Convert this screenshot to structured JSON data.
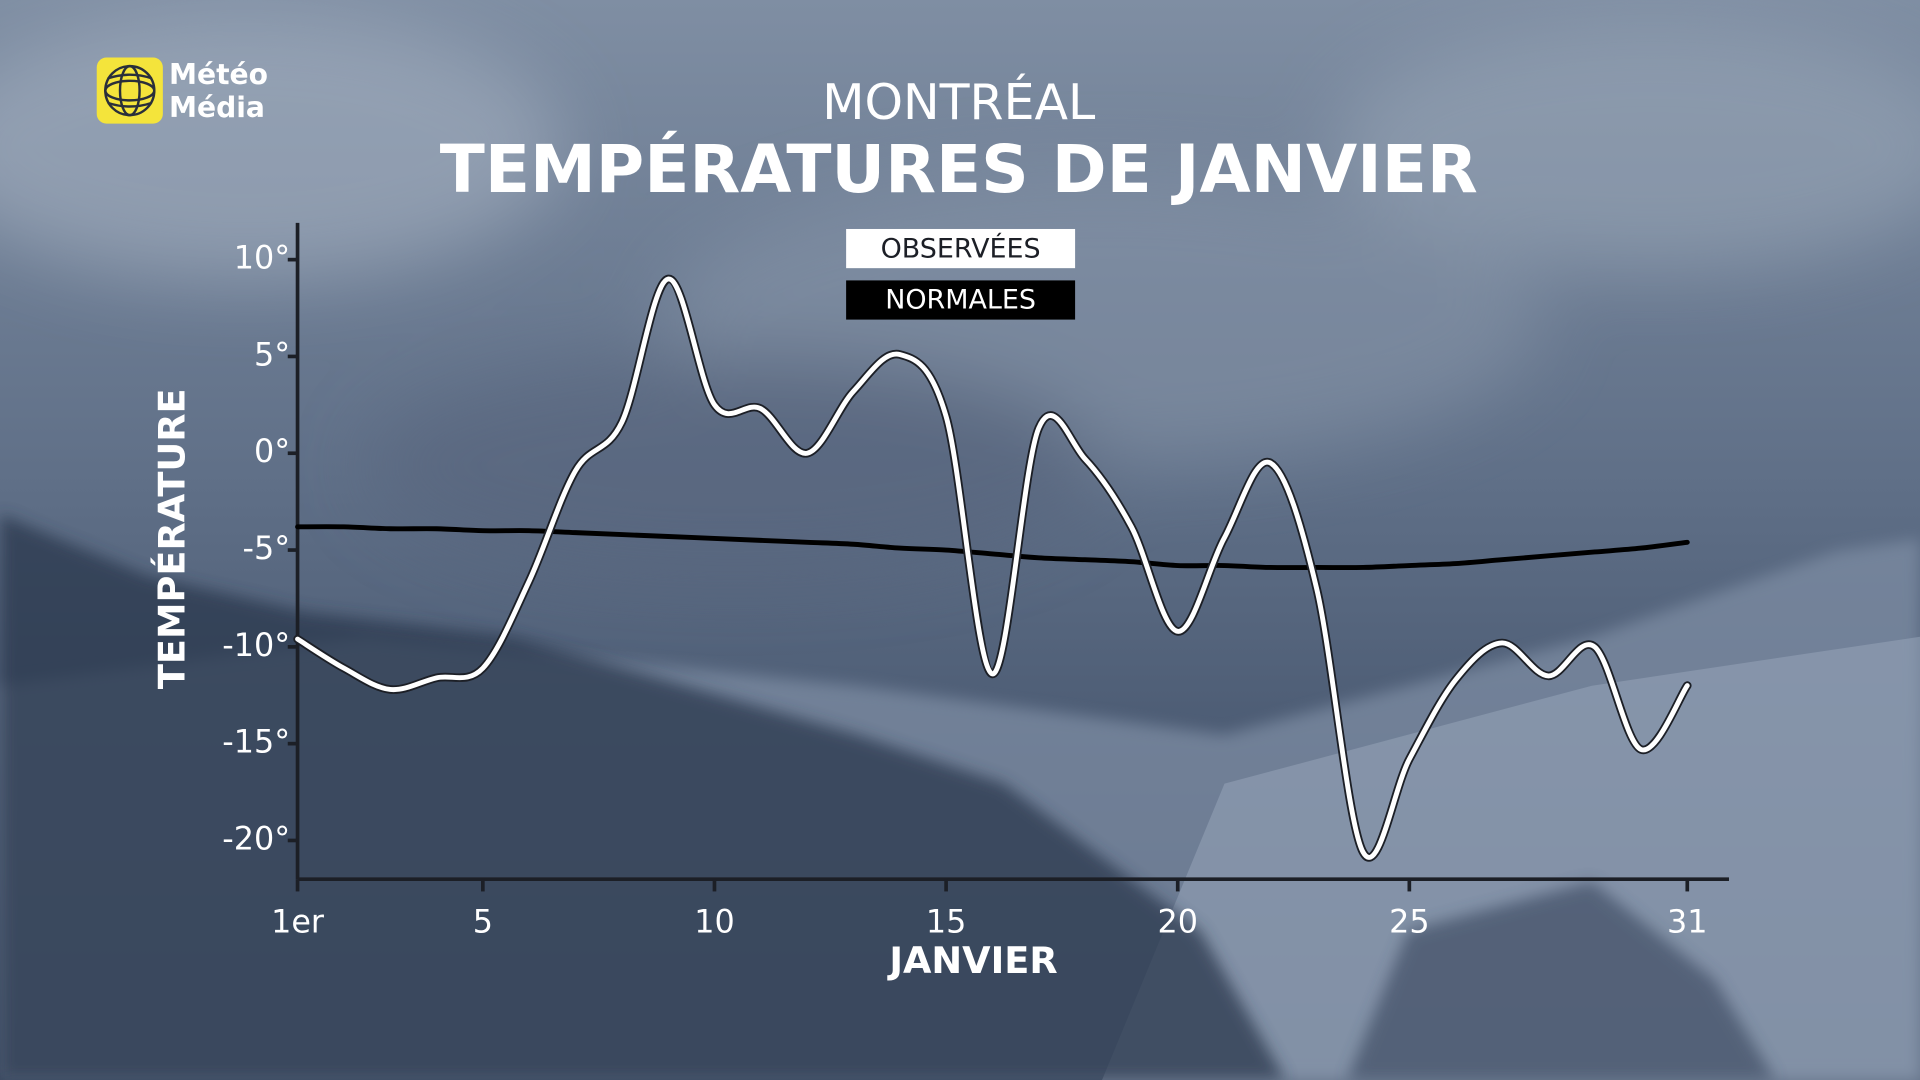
{
  "logo": {
    "line1": "Météo",
    "line2": "Média"
  },
  "chart_data": {
    "type": "line",
    "subtitle": "MONTRÉAL",
    "title": "TEMPÉRATURES DE JANVIER",
    "x_label": "JANVIER",
    "y_label": "TEMPÉRATURE",
    "x": [
      1,
      2,
      3,
      4,
      5,
      6,
      7,
      8,
      9,
      10,
      11,
      12,
      13,
      14,
      15,
      16,
      17,
      18,
      19,
      20,
      21,
      22,
      23,
      24,
      25,
      26,
      27,
      28,
      29,
      30,
      31
    ],
    "series": [
      {
        "name": "OBSERVÉES",
        "color": "#ffffff",
        "values": [
          -9.6,
          -11.1,
          -12.2,
          -11.6,
          -11.1,
          -6.6,
          -0.9,
          1.6,
          9.0,
          2.5,
          2.3,
          0,
          3.2,
          5.1,
          1.9,
          -11.4,
          1.3,
          -0.3,
          -3.8,
          -9.2,
          -4.4,
          -0.5,
          -7.0,
          -20.6,
          -15.8,
          -11.7,
          -9.8,
          -11.5,
          -10,
          -15.3,
          -12
        ]
      },
      {
        "name": "NORMALES",
        "color": "#000000",
        "values": [
          -3.8,
          -3.8,
          -3.9,
          -3.9,
          -4.0,
          -4.0,
          -4.1,
          -4.2,
          -4.3,
          -4.4,
          -4.5,
          -4.6,
          -4.7,
          -4.9,
          -5.0,
          -5.2,
          -5.4,
          -5.5,
          -5.6,
          -5.8,
          -5.8,
          -5.9,
          -5.9,
          -5.9,
          -5.8,
          -5.7,
          -5.5,
          -5.3,
          -5.1,
          -4.9,
          -4.6
        ]
      }
    ],
    "xlim": [
      1,
      31.9
    ],
    "ylim": [
      -22,
      11.9
    ],
    "xticks": [
      {
        "value": 1,
        "label": "1er"
      },
      5,
      10,
      15,
      20,
      25,
      31
    ],
    "yticks": [
      {
        "value": 10,
        "label": "10°"
      },
      {
        "value": 5,
        "label": "5°"
      },
      {
        "value": 0,
        "label": "0°"
      },
      {
        "value": -5,
        "label": "-5°"
      },
      {
        "value": -10,
        "label": "-10°"
      },
      {
        "value": -15,
        "label": "-15°"
      },
      {
        "value": -20,
        "label": "-20°"
      }
    ],
    "grid": false
  }
}
